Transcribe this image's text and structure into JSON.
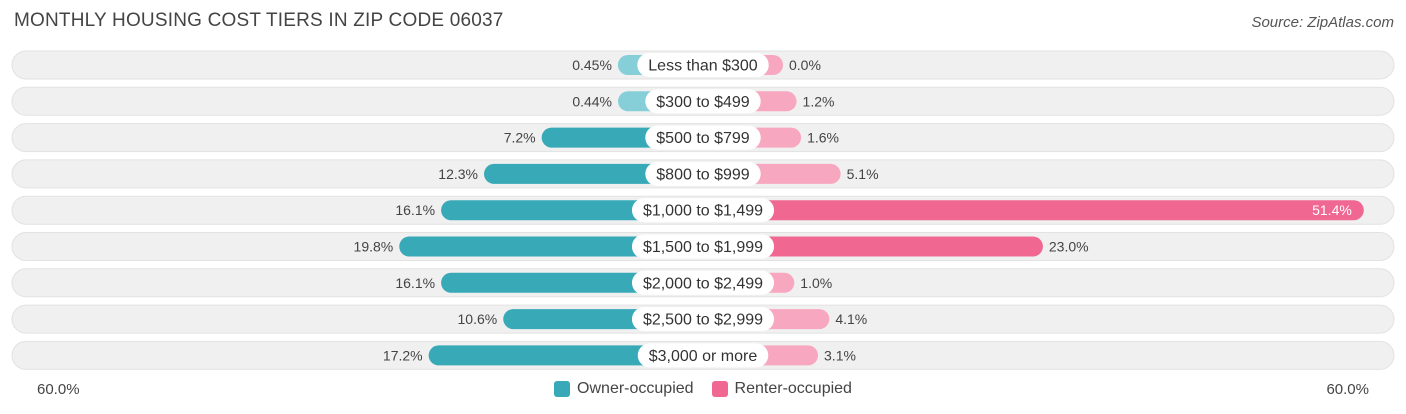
{
  "title": "MONTHLY HOUSING COST TIERS IN ZIP CODE 06037",
  "source": "Source: ZipAtlas.com",
  "axis": {
    "left_label": "60.0%",
    "right_label": "60.0%"
  },
  "legend": {
    "owner_label": "Owner-occupied",
    "renter_label": "Renter-occupied"
  },
  "colors": {
    "owner_dark": "#37a9b7",
    "owner_light": "#87cfd8",
    "renter_dark": "#f06892",
    "renter_light": "#f7a8c0",
    "row_bg": "#f0f0f0"
  },
  "chart_data": {
    "type": "bar",
    "orientation": "diverging-horizontal",
    "xlim": [
      -60,
      60
    ],
    "categories": [
      "Less than $300",
      "$300 to $499",
      "$500 to $799",
      "$800 to $999",
      "$1,000 to $1,499",
      "$1,500 to $1,999",
      "$2,000 to $2,499",
      "$2,500 to $2,999",
      "$3,000 or more"
    ],
    "series": [
      {
        "name": "Owner-occupied",
        "values": [
          0.45,
          0.44,
          7.2,
          12.3,
          16.1,
          19.8,
          16.1,
          10.6,
          17.2
        ],
        "labels": [
          "0.45%",
          "0.44%",
          "7.2%",
          "12.3%",
          "16.1%",
          "19.8%",
          "16.1%",
          "10.6%",
          "17.2%"
        ]
      },
      {
        "name": "Renter-occupied",
        "values": [
          0.0,
          1.2,
          1.6,
          5.1,
          51.4,
          23.0,
          1.0,
          4.1,
          3.1
        ],
        "labels": [
          "0.0%",
          "1.2%",
          "1.6%",
          "5.1%",
          "51.4%",
          "23.0%",
          "1.0%",
          "4.1%",
          "3.1%"
        ]
      }
    ]
  }
}
